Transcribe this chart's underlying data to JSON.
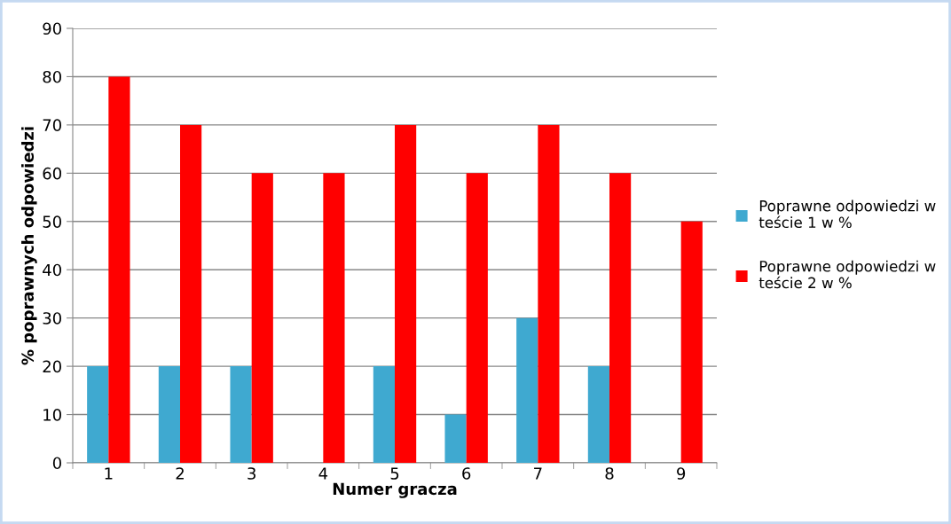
{
  "chart_data": {
    "type": "bar",
    "xlabel": "Numer gracza",
    "ylabel": "% poprawnych odpowiedzi",
    "categories": [
      "1",
      "2",
      "3",
      "4",
      "5",
      "6",
      "7",
      "8",
      "9"
    ],
    "series": [
      {
        "name": "Poprawne odpowiedzi w teście 1 w %",
        "color": "#3fa9d0",
        "values": [
          20,
          20,
          20,
          0,
          20,
          10,
          30,
          20,
          0
        ]
      },
      {
        "name": "Poprawne odpowiedzi w teście 2 w %",
        "color": "#ff0000",
        "values": [
          80,
          70,
          60,
          60,
          70,
          60,
          70,
          60,
          50
        ]
      }
    ],
    "ylim": [
      0,
      90
    ],
    "yticks": [
      0,
      10,
      20,
      30,
      40,
      50,
      60,
      70,
      80,
      90
    ],
    "grid": "y",
    "legend": "right"
  }
}
